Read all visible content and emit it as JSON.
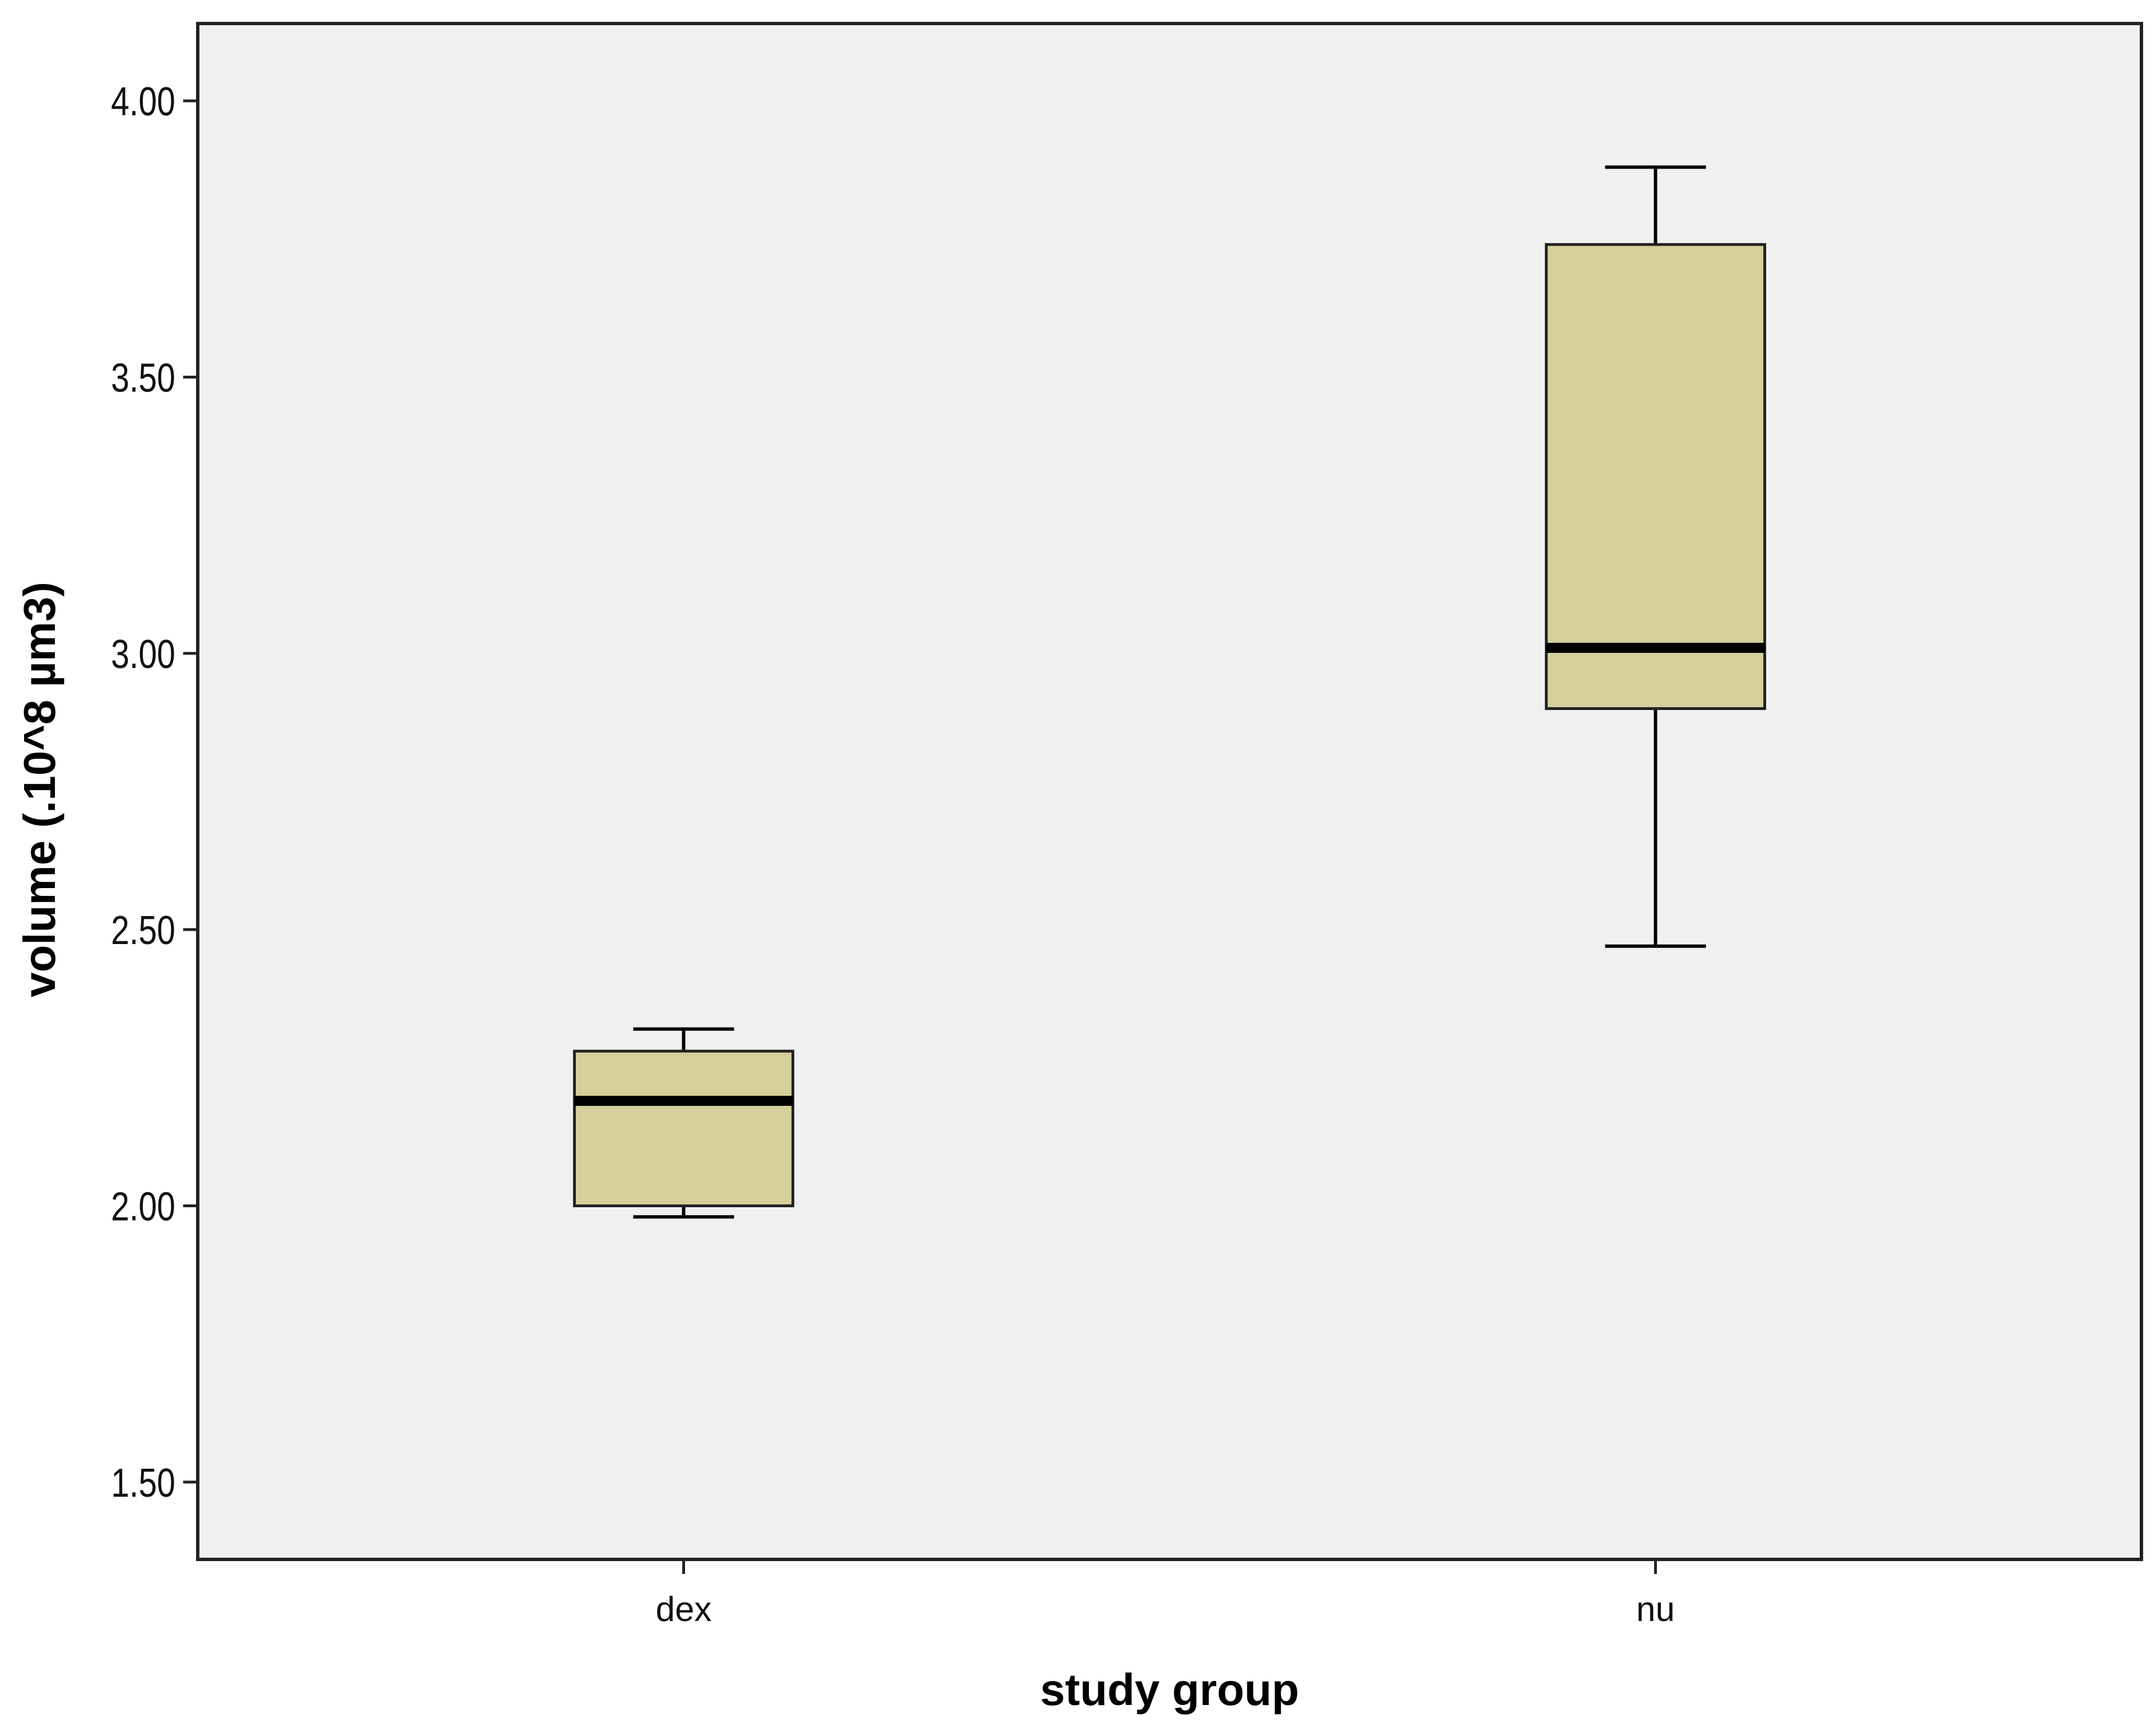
{
  "chart_data": {
    "type": "boxplot",
    "xlabel": "study group",
    "ylabel": "volume (.10^8 µm3)",
    "ylim": [
      1.36,
      4.14
    ],
    "yticks": [
      "1.50",
      "2.00",
      "2.50",
      "3.00",
      "3.50",
      "4.00"
    ],
    "categories": [
      "dex",
      "nu"
    ],
    "boxes": [
      {
        "category": "dex",
        "whisker_low": 1.98,
        "q1": 2.0,
        "median": 2.19,
        "q3": 2.28,
        "whisker_high": 2.32
      },
      {
        "category": "nu",
        "whisker_low": 2.47,
        "q1": 2.9,
        "median": 3.01,
        "q3": 3.74,
        "whisker_high": 3.88
      }
    ],
    "grid": false,
    "colors": {
      "plot_background": "#f0f0f0",
      "box_fill": "#d4cf9b",
      "stroke": "#000000"
    }
  }
}
